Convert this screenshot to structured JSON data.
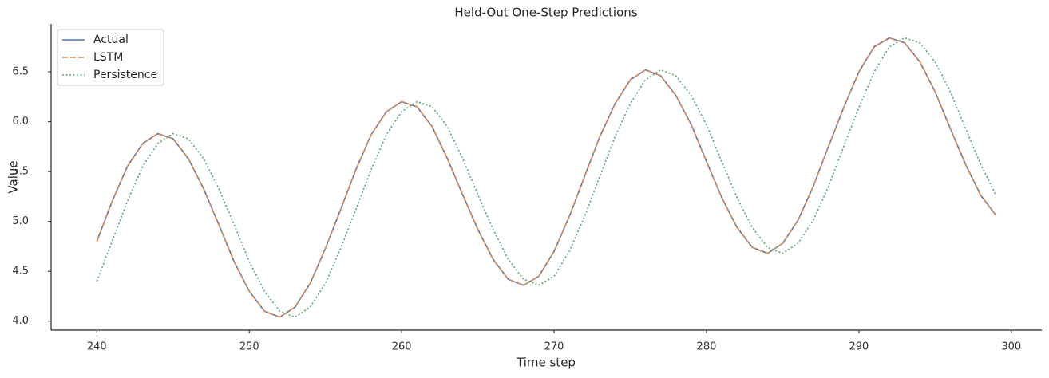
{
  "chart_data": {
    "type": "line",
    "title": "Held-Out One-Step Predictions",
    "x_label": "Time step",
    "y_label": "Value",
    "x": [
      240,
      241,
      242,
      243,
      244,
      245,
      246,
      247,
      248,
      249,
      250,
      251,
      252,
      253,
      254,
      255,
      256,
      257,
      258,
      259,
      260,
      261,
      262,
      263,
      264,
      265,
      266,
      267,
      268,
      269,
      270,
      271,
      272,
      273,
      274,
      275,
      276,
      277,
      278,
      279,
      280,
      281,
      282,
      283,
      284,
      285,
      286,
      287,
      288,
      289,
      290,
      291,
      292,
      293,
      294,
      295,
      296,
      297,
      298,
      299
    ],
    "series": [
      {
        "name": "Actual",
        "color": "#4c72b0",
        "dash": "solid",
        "values": [
          4.8,
          5.2,
          5.55,
          5.78,
          5.88,
          5.83,
          5.63,
          5.33,
          4.97,
          4.6,
          4.3,
          4.1,
          4.04,
          4.14,
          4.38,
          4.73,
          5.12,
          5.52,
          5.87,
          6.1,
          6.2,
          6.15,
          5.95,
          5.63,
          5.27,
          4.92,
          4.62,
          4.42,
          4.36,
          4.45,
          4.7,
          5.05,
          5.45,
          5.85,
          6.18,
          6.42,
          6.52,
          6.46,
          6.26,
          5.97,
          5.6,
          5.24,
          4.94,
          4.74,
          4.68,
          4.78,
          5.01,
          5.35,
          5.75,
          6.14,
          6.5,
          6.75,
          6.84,
          6.79,
          6.6,
          6.3,
          5.93,
          5.57,
          5.26,
          5.06
        ]
      },
      {
        "name": "LSTM",
        "color": "#dd8452",
        "dash": "dashed",
        "values": [
          4.8,
          5.2,
          5.55,
          5.78,
          5.88,
          5.83,
          5.63,
          5.33,
          4.97,
          4.6,
          4.3,
          4.1,
          4.04,
          4.14,
          4.38,
          4.73,
          5.12,
          5.52,
          5.87,
          6.1,
          6.2,
          6.15,
          5.95,
          5.63,
          5.27,
          4.92,
          4.62,
          4.42,
          4.36,
          4.45,
          4.7,
          5.05,
          5.45,
          5.85,
          6.18,
          6.42,
          6.52,
          6.46,
          6.26,
          5.97,
          5.6,
          5.24,
          4.94,
          4.74,
          4.68,
          4.78,
          5.01,
          5.35,
          5.75,
          6.14,
          6.5,
          6.75,
          6.84,
          6.79,
          6.6,
          6.3,
          5.93,
          5.57,
          5.26,
          5.06
        ]
      },
      {
        "name": "Persistence",
        "color": "#55a868",
        "dash": "dotted",
        "values": [
          4.4,
          4.8,
          5.2,
          5.55,
          5.78,
          5.88,
          5.83,
          5.63,
          5.33,
          4.97,
          4.6,
          4.3,
          4.1,
          4.04,
          4.14,
          4.38,
          4.73,
          5.12,
          5.52,
          5.87,
          6.1,
          6.2,
          6.15,
          5.95,
          5.63,
          5.27,
          4.92,
          4.62,
          4.42,
          4.36,
          4.45,
          4.7,
          5.05,
          5.45,
          5.85,
          6.18,
          6.42,
          6.52,
          6.46,
          6.26,
          5.97,
          5.6,
          5.24,
          4.94,
          4.74,
          4.68,
          4.78,
          5.01,
          5.35,
          5.75,
          6.14,
          6.5,
          6.75,
          6.84,
          6.79,
          6.6,
          6.3,
          5.93,
          5.57,
          5.26
        ]
      }
    ],
    "xlim": [
      237,
      302
    ],
    "xticks": [
      240,
      250,
      260,
      270,
      280,
      290,
      300
    ],
    "ylim": [
      3.91,
      6.98
    ],
    "yticks": [
      {
        "value": 4,
        "label": "4.0"
      },
      4.5,
      {
        "value": 5,
        "label": "5.0"
      },
      5.5,
      {
        "value": 6,
        "label": "6.0"
      },
      6.5
    ],
    "grid": false,
    "legend": "upper left"
  }
}
